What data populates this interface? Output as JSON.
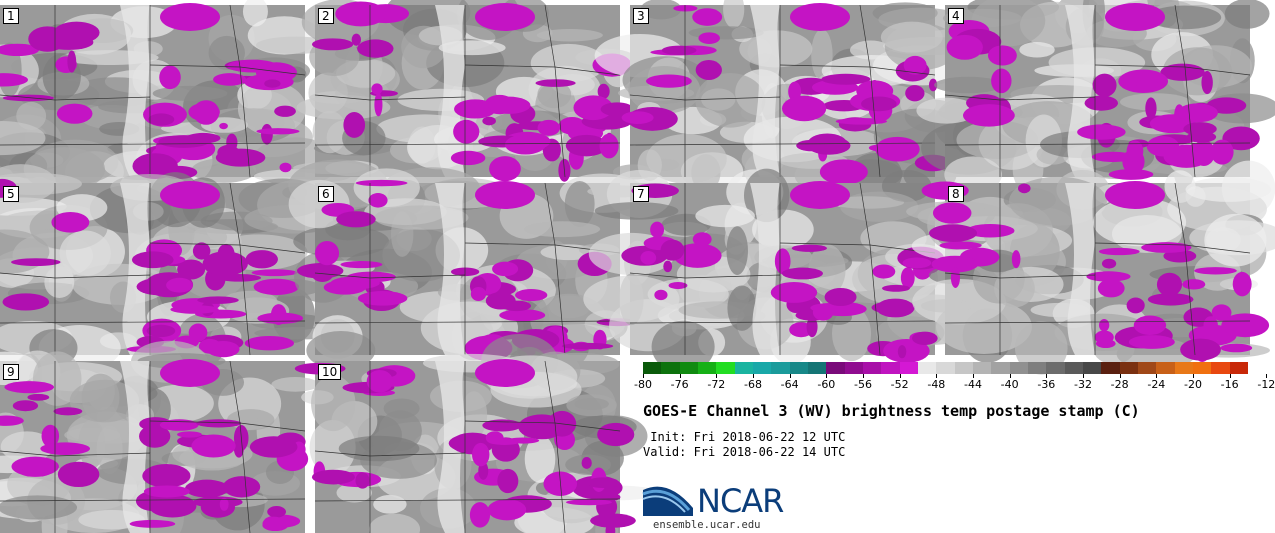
{
  "panels": [
    {
      "label": "1"
    },
    {
      "label": "2"
    },
    {
      "label": "3"
    },
    {
      "label": "4"
    },
    {
      "label": "5"
    },
    {
      "label": "6"
    },
    {
      "label": "7"
    },
    {
      "label": "8"
    },
    {
      "label": "9"
    },
    {
      "label": "10"
    }
  ],
  "colorbar": {
    "ticks": [
      "-80",
      "-76",
      "-72",
      "-68",
      "-64",
      "-60",
      "-56",
      "-52",
      "-48",
      "-44",
      "-40",
      "-36",
      "-32",
      "-28",
      "-24",
      "-20",
      "-16",
      "-12"
    ],
    "colors": [
      "#0a5a0a",
      "#0d720d",
      "#108a10",
      "#16b016",
      "#22dd22",
      "#1ab4a0",
      "#19a8a8",
      "#1a9b9b",
      "#178888",
      "#157575",
      "#7a0a7a",
      "#900c90",
      "#a810a8",
      "#c014c0",
      "#d418d4",
      "#e8e8e8",
      "#d8d8d8",
      "#c6c6c6",
      "#b4b4b4",
      "#a2a2a2",
      "#909090",
      "#7e7e7e",
      "#6c6c6c",
      "#5a5a5a",
      "#484848",
      "#5a2010",
      "#7a3010",
      "#a04818",
      "#c86018",
      "#e87818",
      "#f07010",
      "#e84810",
      "#c82808"
    ],
    "unit": "C"
  },
  "title": "GOES-E Channel 3 (WV) brightness temp postage stamp (C)",
  "init": " Init: Fri 2018-06-22 12 UTC",
  "valid": "Valid: Fri 2018-06-22 14 UTC",
  "logo": {
    "name": "NCAR",
    "url": "ensemble.ucar.edu",
    "icon": "ncar-logo-icon"
  }
}
